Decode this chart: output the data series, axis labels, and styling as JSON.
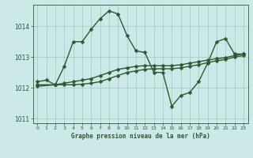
{
  "bg_color": "#cce8e8",
  "grid_color": "#99ccbb",
  "line_color": "#2d5a2d",
  "title": "Graphe pression niveau de la mer (hPa)",
  "xlim": [
    -0.5,
    23.5
  ],
  "ylim": [
    1010.85,
    1014.7
  ],
  "yticks": [
    1011,
    1012,
    1013,
    1014
  ],
  "xticks": [
    0,
    1,
    2,
    3,
    4,
    5,
    6,
    7,
    8,
    9,
    10,
    11,
    12,
    13,
    14,
    15,
    16,
    17,
    18,
    19,
    20,
    21,
    22,
    23
  ],
  "series1_x": [
    0,
    1,
    2,
    3,
    4,
    5,
    6,
    7,
    8,
    9,
    10,
    11,
    12,
    13,
    14,
    15,
    16,
    17,
    18,
    19,
    20,
    21,
    22,
    23
  ],
  "series1_y": [
    1012.2,
    1012.25,
    1012.1,
    1012.7,
    1013.5,
    1013.5,
    1013.9,
    1014.25,
    1014.5,
    1014.4,
    1013.7,
    1013.2,
    1013.15,
    1012.5,
    1012.5,
    1011.4,
    1011.75,
    1011.85,
    1012.2,
    1012.8,
    1013.5,
    1013.6,
    1013.1,
    1013.1
  ],
  "series2_x": [
    0,
    2,
    3,
    4,
    5,
    6,
    7,
    8,
    9,
    10,
    11,
    12,
    13,
    14,
    15,
    16,
    17,
    18,
    19,
    20,
    21,
    22,
    23
  ],
  "series2_y": [
    1012.1,
    1012.1,
    1012.15,
    1012.2,
    1012.25,
    1012.3,
    1012.4,
    1012.5,
    1012.6,
    1012.65,
    1012.7,
    1012.72,
    1012.72,
    1012.72,
    1012.72,
    1012.75,
    1012.8,
    1012.85,
    1012.9,
    1012.95,
    1012.98,
    1013.05,
    1013.1
  ],
  "series3_x": [
    0,
    2,
    3,
    4,
    5,
    6,
    7,
    8,
    9,
    10,
    11,
    12,
    13,
    14,
    15,
    16,
    17,
    18,
    19,
    20,
    21,
    22,
    23
  ],
  "series3_y": [
    1012.05,
    1012.1,
    1012.1,
    1012.1,
    1012.12,
    1012.15,
    1012.2,
    1012.3,
    1012.4,
    1012.5,
    1012.55,
    1012.6,
    1012.62,
    1012.62,
    1012.62,
    1012.65,
    1012.7,
    1012.75,
    1012.82,
    1012.88,
    1012.92,
    1013.0,
    1013.05
  ],
  "marker": "D",
  "marker_size": 2.5,
  "line_width": 1.0
}
